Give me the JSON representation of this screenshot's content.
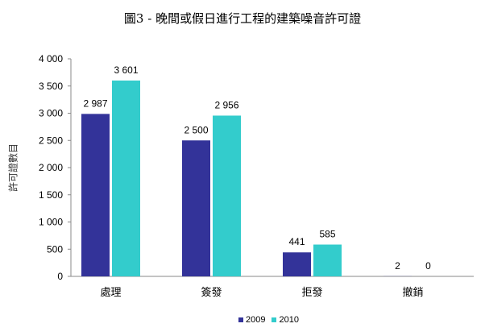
{
  "chart_data": {
    "type": "bar",
    "title": "圖3 - 晚間或假日進行工程的建築噪音許可證",
    "xlabel": "",
    "ylabel": "許可證數目",
    "categories": [
      "處理",
      "簽發",
      "拒發",
      "撤銷"
    ],
    "series": [
      {
        "name": "2009",
        "values": [
          2987,
          2500,
          441,
          2
        ],
        "labels": [
          "2 987",
          "2 500",
          "441",
          "2"
        ],
        "color": "#333399"
      },
      {
        "name": "2010",
        "values": [
          3601,
          2956,
          585,
          0
        ],
        "labels": [
          "3 601",
          "2 956",
          "585",
          "0"
        ],
        "color": "#33CCCC"
      }
    ],
    "ylim": [
      0,
      4000
    ],
    "yticks": [
      0,
      500,
      1000,
      1500,
      2000,
      2500,
      3000,
      3500,
      4000
    ],
    "ytick_labels": [
      "0",
      "500",
      "1 000",
      "1 500",
      "2 000",
      "2 500",
      "3 000",
      "3 500",
      "4 000"
    ],
    "grid": false,
    "legend": "bottom"
  }
}
